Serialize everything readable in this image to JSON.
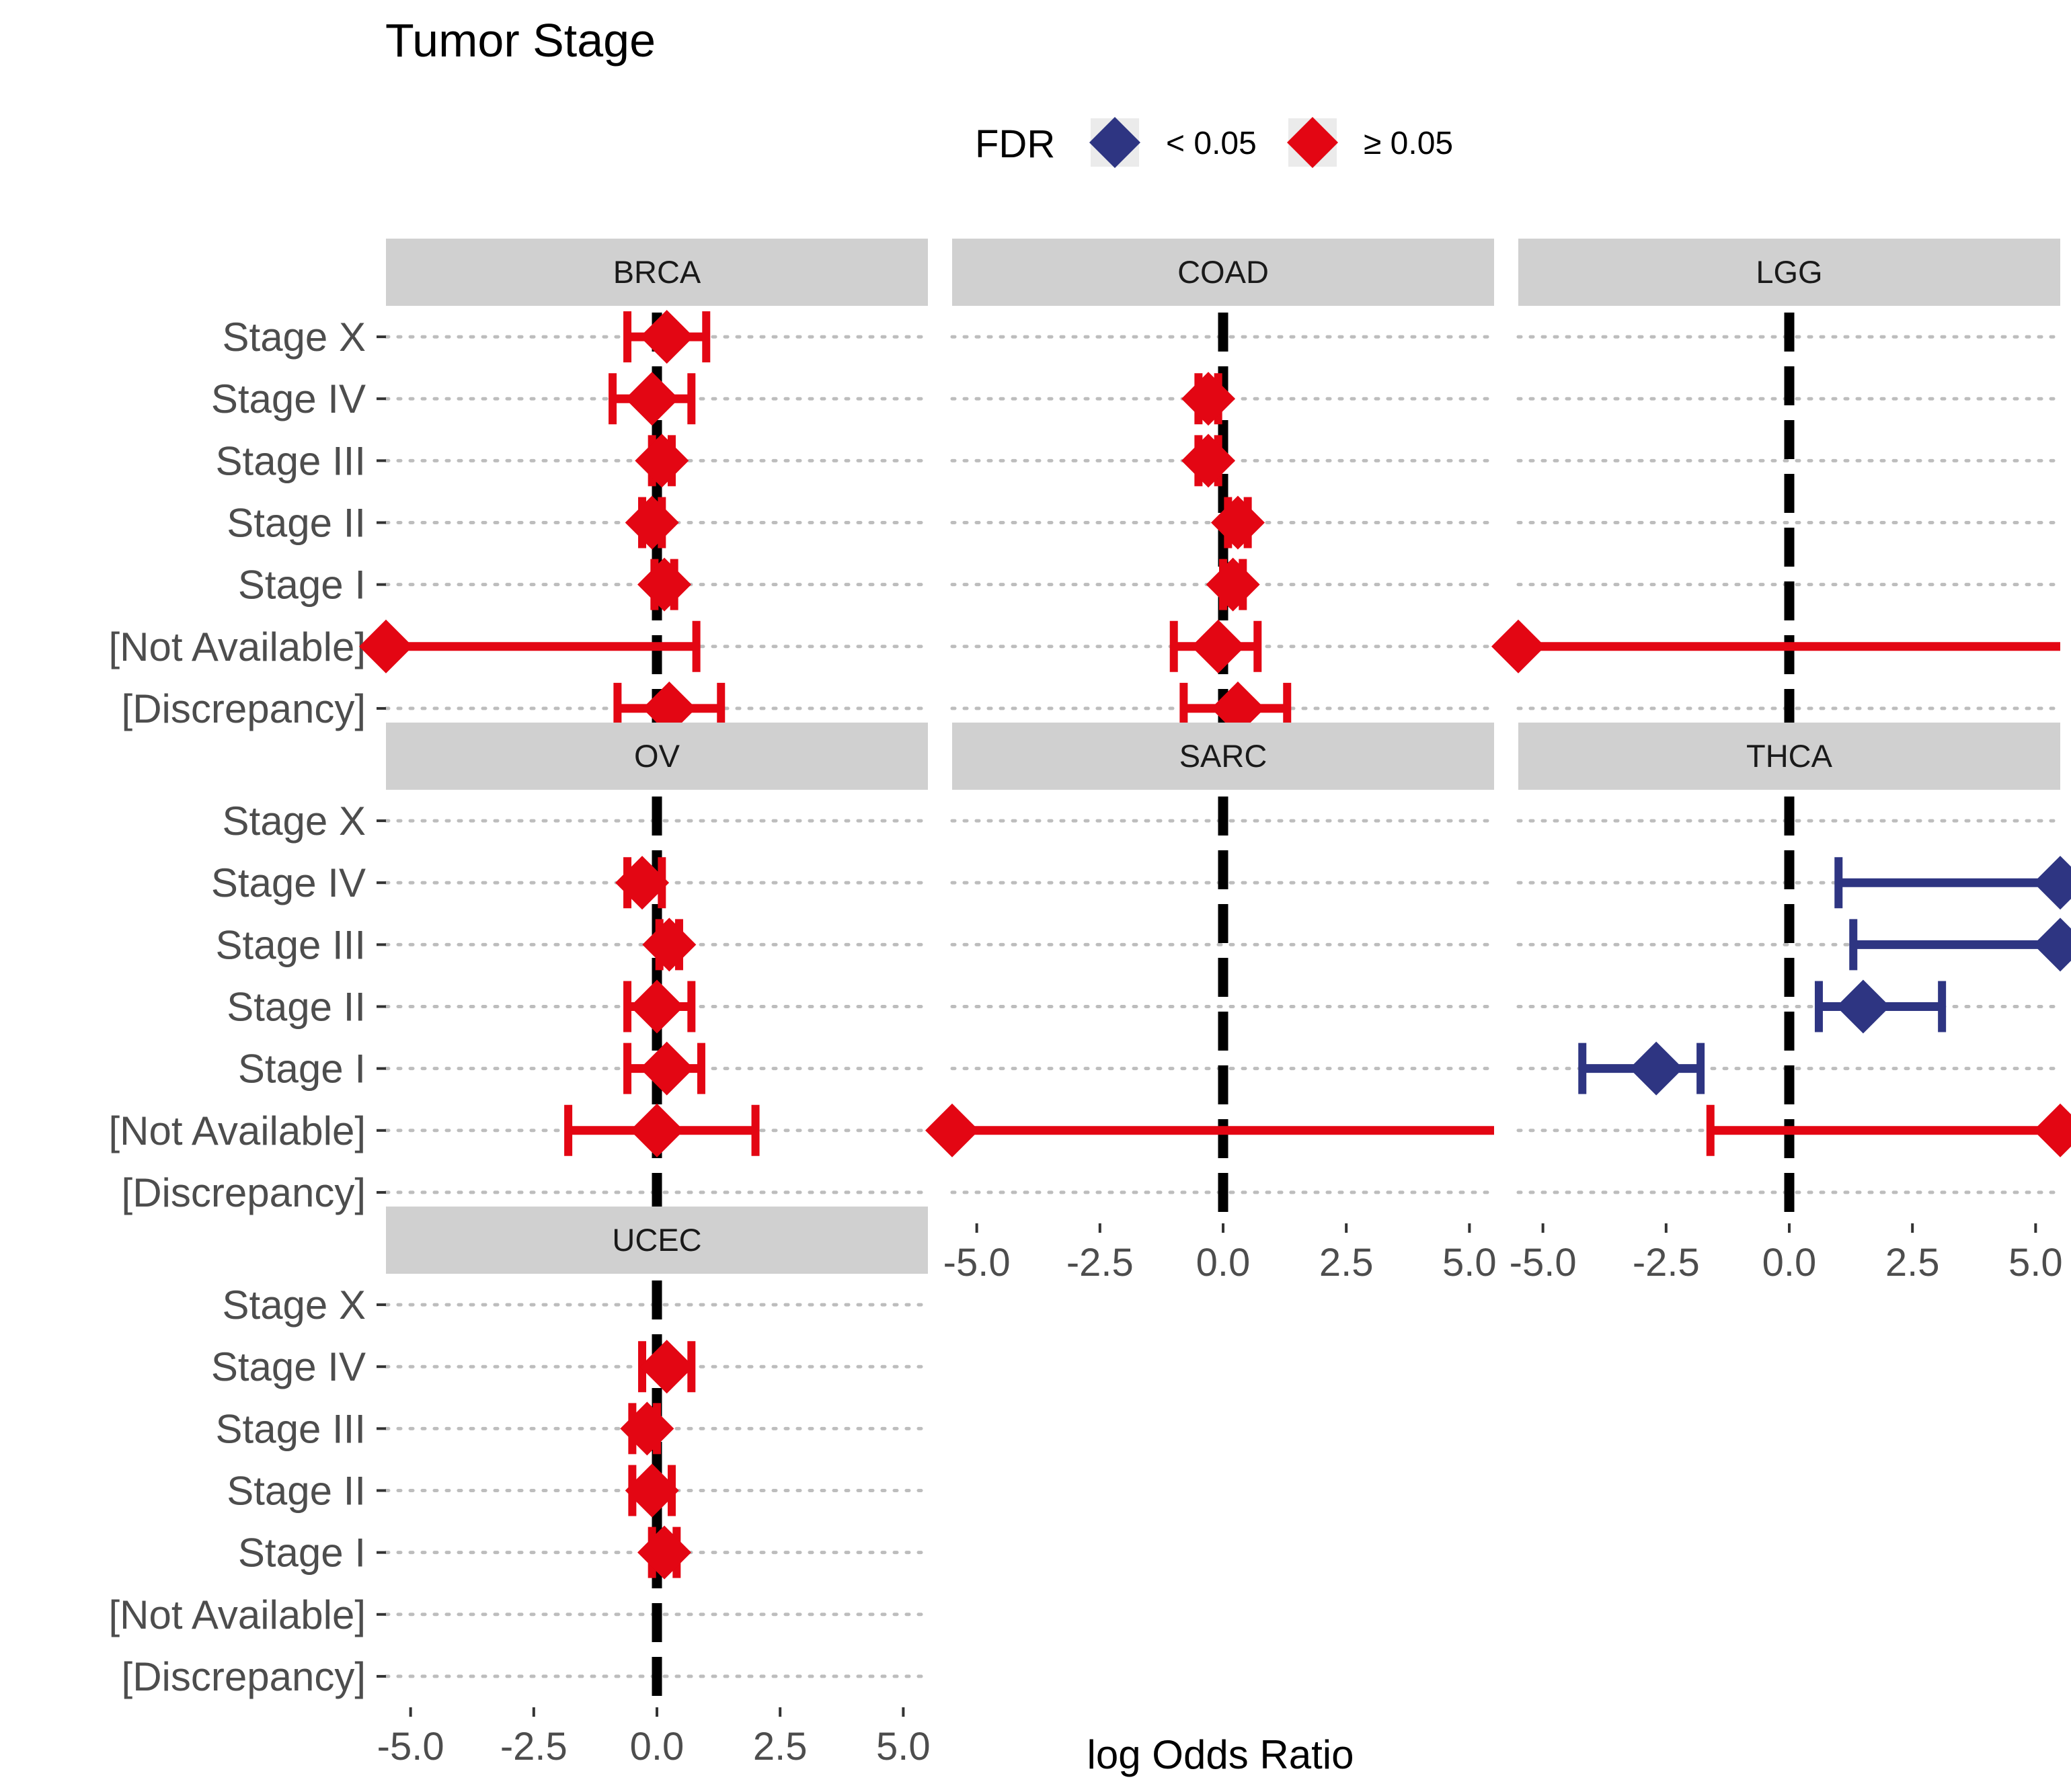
{
  "chart_data": {
    "type": "forest",
    "title": "Tumor Stage",
    "xlabel": "log Odds Ratio",
    "xlim": [
      -5.5,
      5.5
    ],
    "xticks": [
      "-5.0",
      "-2.5",
      "0.0",
      "2.5",
      "5.0"
    ],
    "xtick_values": [
      -5,
      -2.5,
      0,
      2.5,
      5
    ],
    "reference_line": 0,
    "categories": [
      "Stage X",
      "Stage IV",
      "Stage III",
      "Stage II",
      "Stage I",
      "[Not Available]",
      "[Discrepancy]"
    ],
    "legend": {
      "title": "FDR",
      "position": "top",
      "entries": [
        {
          "label": "< 0.05",
          "color": "#2e3582"
        },
        {
          "label": "≥ 0.05",
          "color": "#e30613"
        }
      ]
    },
    "panels": [
      {
        "name": "BRCA",
        "estimates": [
          {
            "category": "Stage X",
            "or": 0.2,
            "lo": -0.6,
            "hi": 1.0,
            "fdr": "≥ 0.05"
          },
          {
            "category": "Stage IV",
            "or": -0.1,
            "lo": -0.9,
            "hi": 0.7,
            "fdr": "≥ 0.05"
          },
          {
            "category": "Stage III",
            "or": 0.1,
            "lo": -0.1,
            "hi": 0.3,
            "fdr": "≥ 0.05"
          },
          {
            "category": "Stage II",
            "or": -0.1,
            "lo": -0.3,
            "hi": 0.1,
            "fdr": "≥ 0.05"
          },
          {
            "category": "Stage I",
            "or": 0.15,
            "lo": -0.05,
            "hi": 0.35,
            "fdr": "≥ 0.05"
          },
          {
            "category": "[Not Available]",
            "or": -5.5,
            "lo": -5.5,
            "hi": 0.8,
            "fdr": "≥ 0.05"
          },
          {
            "category": "[Discrepancy]",
            "or": 0.25,
            "lo": -0.8,
            "hi": 1.3,
            "fdr": "≥ 0.05"
          }
        ]
      },
      {
        "name": "COAD",
        "estimates": [
          {
            "category": "Stage IV",
            "or": -0.3,
            "lo": -0.5,
            "hi": -0.1,
            "fdr": "≥ 0.05"
          },
          {
            "category": "Stage III",
            "or": -0.3,
            "lo": -0.5,
            "hi": -0.1,
            "fdr": "≥ 0.05"
          },
          {
            "category": "Stage II",
            "or": 0.3,
            "lo": 0.1,
            "hi": 0.5,
            "fdr": "≥ 0.05"
          },
          {
            "category": "Stage I",
            "or": 0.2,
            "lo": 0.0,
            "hi": 0.4,
            "fdr": "≥ 0.05"
          },
          {
            "category": "[Not Available]",
            "or": -0.1,
            "lo": -1.0,
            "hi": 0.7,
            "fdr": "≥ 0.05"
          },
          {
            "category": "[Discrepancy]",
            "or": 0.3,
            "lo": -0.8,
            "hi": 1.3,
            "fdr": "≥ 0.05"
          }
        ]
      },
      {
        "name": "LGG",
        "estimates": [
          {
            "category": "[Not Available]",
            "or": -5.5,
            "lo": -5.5,
            "hi": 5.5,
            "fdr": "≥ 0.05"
          }
        ]
      },
      {
        "name": "OV",
        "estimates": [
          {
            "category": "Stage IV",
            "or": -0.3,
            "lo": -0.6,
            "hi": 0.1,
            "fdr": "≥ 0.05"
          },
          {
            "category": "Stage III",
            "or": 0.25,
            "lo": 0.05,
            "hi": 0.45,
            "fdr": "≥ 0.05"
          },
          {
            "category": "Stage II",
            "or": 0.0,
            "lo": -0.6,
            "hi": 0.7,
            "fdr": "≥ 0.05"
          },
          {
            "category": "Stage I",
            "or": 0.2,
            "lo": -0.6,
            "hi": 0.9,
            "fdr": "≥ 0.05"
          },
          {
            "category": "[Not Available]",
            "or": 0.0,
            "lo": -1.8,
            "hi": 2.0,
            "fdr": "≥ 0.05"
          }
        ]
      },
      {
        "name": "SARC",
        "estimates": [
          {
            "category": "[Not Available]",
            "or": -5.5,
            "lo": -5.5,
            "hi": 5.5,
            "fdr": "≥ 0.05"
          }
        ]
      },
      {
        "name": "THCA",
        "estimates": [
          {
            "category": "Stage IV",
            "or": 5.5,
            "lo": 1.0,
            "hi": 5.5,
            "fdr": "< 0.05"
          },
          {
            "category": "Stage III",
            "or": 5.5,
            "lo": 1.3,
            "hi": 5.5,
            "fdr": "< 0.05"
          },
          {
            "category": "Stage II",
            "or": 1.5,
            "lo": 0.6,
            "hi": 3.1,
            "fdr": "< 0.05"
          },
          {
            "category": "Stage I",
            "or": -2.7,
            "lo": -4.2,
            "hi": -1.8,
            "fdr": "< 0.05"
          },
          {
            "category": "[Not Available]",
            "or": 5.5,
            "lo": -1.6,
            "hi": 5.5,
            "fdr": "≥ 0.05"
          }
        ]
      },
      {
        "name": "UCEC",
        "estimates": [
          {
            "category": "Stage IV",
            "or": 0.2,
            "lo": -0.3,
            "hi": 0.7,
            "fdr": "≥ 0.05"
          },
          {
            "category": "Stage III",
            "or": -0.2,
            "lo": -0.5,
            "hi": 0.0,
            "fdr": "≥ 0.05"
          },
          {
            "category": "Stage II",
            "or": -0.1,
            "lo": -0.5,
            "hi": 0.3,
            "fdr": "≥ 0.05"
          },
          {
            "category": "Stage I",
            "or": 0.15,
            "lo": -0.1,
            "hi": 0.4,
            "fdr": "≥ 0.05"
          }
        ]
      }
    ]
  }
}
